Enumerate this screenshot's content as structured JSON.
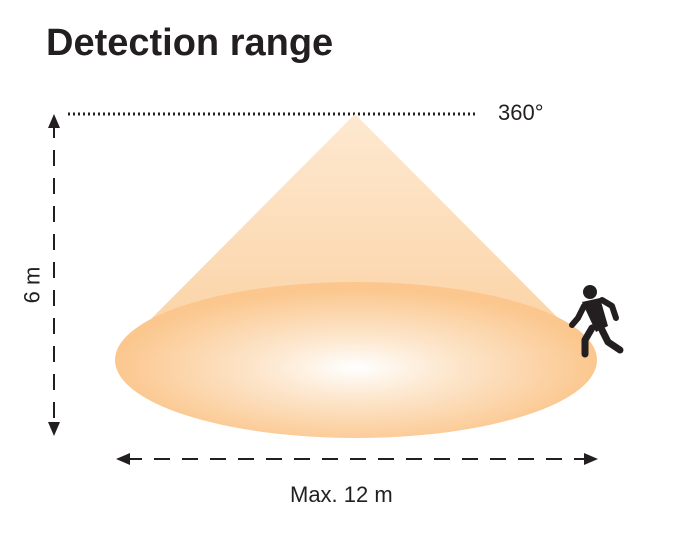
{
  "title": "Detection range",
  "angle_label": "360°",
  "height_label": "6 m",
  "width_label": "Max. 12 m",
  "colors": {
    "cone": "#fbd3a4",
    "ellipse_edge": "#fbc68c",
    "text": "#231f20"
  },
  "icons": [
    "person-walking-icon"
  ]
}
